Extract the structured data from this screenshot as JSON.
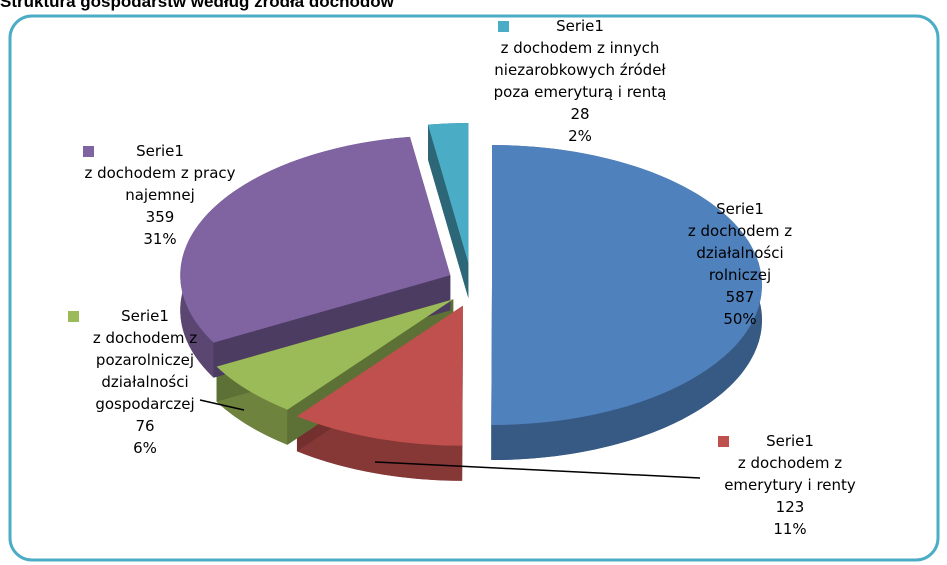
{
  "chart_data": {
    "type": "pie",
    "title": "Struktura gospodarstw według źródła dochodów",
    "series_name": "Serie1",
    "categories": [
      "z dochodem z działalności rolniczej",
      "z dochodem z emerytury i renty",
      "z dochodem z pozarolniczej działalności gospodarczej",
      "z dochodem z pracy najemnej",
      "z dochodem z innych niezarobkowych źródeł poza emeryturą i rentą"
    ],
    "values": [
      587,
      123,
      76,
      359,
      28
    ],
    "percent_labels": [
      "50%",
      "11%",
      "6%",
      "31%",
      "2%"
    ],
    "colors": [
      "#4f81bd",
      "#c0504d",
      "#9bbb59",
      "#8064a2",
      "#4bacc6"
    ]
  }
}
